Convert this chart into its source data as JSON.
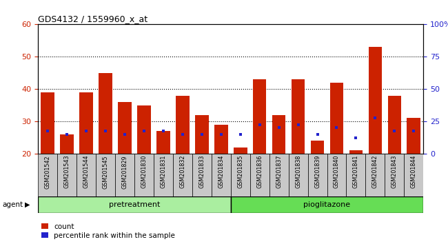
{
  "title": "GDS4132 / 1559960_x_at",
  "categories": [
    "GSM201542",
    "GSM201543",
    "GSM201544",
    "GSM201545",
    "GSM201829",
    "GSM201830",
    "GSM201831",
    "GSM201832",
    "GSM201833",
    "GSM201834",
    "GSM201835",
    "GSM201836",
    "GSM201837",
    "GSM201838",
    "GSM201839",
    "GSM201840",
    "GSM201841",
    "GSM201842",
    "GSM201843",
    "GSM201844"
  ],
  "count_values": [
    39,
    26,
    39,
    45,
    36,
    35,
    27,
    38,
    32,
    29,
    22,
    43,
    32,
    43,
    24,
    42,
    21,
    53,
    38,
    31
  ],
  "percentile_values_left": [
    27,
    26,
    27,
    27,
    26,
    27,
    27,
    26,
    26,
    26,
    26,
    29,
    28,
    29,
    26,
    28,
    25,
    31,
    27,
    27
  ],
  "bar_color": "#cc2200",
  "percentile_color": "#2222cc",
  "ylim_left": [
    20,
    60
  ],
  "ylim_right": [
    0,
    100
  ],
  "yticks_left": [
    20,
    30,
    40,
    50,
    60
  ],
  "yticks_right": [
    0,
    25,
    50,
    75,
    100
  ],
  "ytick_labels_right": [
    "0",
    "25",
    "50",
    "75",
    "100%"
  ],
  "pretreatment_label": "pretreatment",
  "pioglitazone_label": "pioglitazone",
  "agent_label": "agent",
  "legend_count_label": "count",
  "legend_percentile_label": "percentile rank within the sample",
  "bar_width": 0.7,
  "grid_color": "black",
  "pretreat_bg": "#aaeea0",
  "pioglit_bg": "#66dd55",
  "left_tick_color": "#cc2200",
  "right_tick_color": "#2222cc",
  "n_pretreatment": 10,
  "n_pioglitazone": 10
}
